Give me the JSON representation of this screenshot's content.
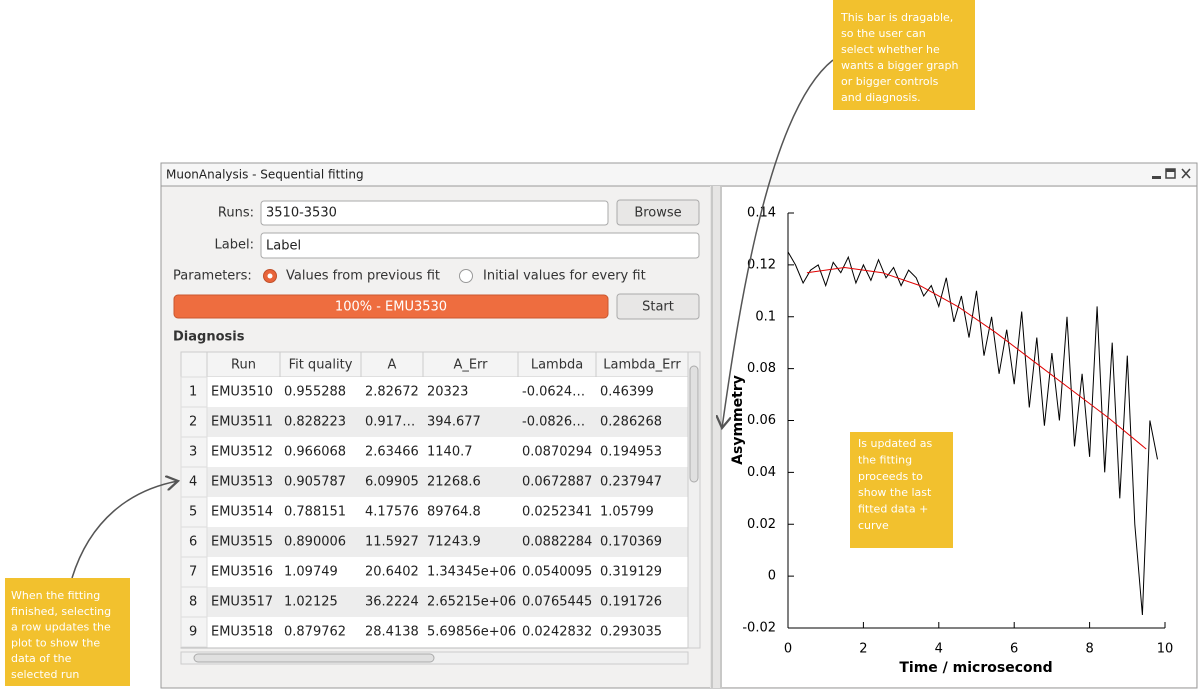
{
  "window": {
    "title": "MuonAnalysis - Sequential fitting"
  },
  "form": {
    "runs_label": "Runs:",
    "runs_value": "3510-3530",
    "browse": "Browse",
    "label_label": "Label:",
    "label_value": "Label",
    "parameters_label": "Parameters:",
    "option_previous": "Values from previous fit",
    "option_initial": "Initial values for every fit",
    "progress_text": "100% - EMU3530",
    "start": "Start",
    "diagnosis": "Diagnosis"
  },
  "table": {
    "columns": [
      "Run",
      "Fit quality",
      "A",
      "A_Err",
      "Lambda",
      "Lambda_Err"
    ],
    "rows": [
      [
        "1",
        "EMU3510",
        "0.955288",
        "2.82672",
        "20323",
        "-0.0624…",
        "0.46399"
      ],
      [
        "2",
        "EMU3511",
        "0.828223",
        "0.917…",
        "394.677",
        "-0.0826…",
        "0.286268"
      ],
      [
        "3",
        "EMU3512",
        "0.966068",
        "2.63466",
        "1140.7",
        "0.0870294",
        "0.194953"
      ],
      [
        "4",
        "EMU3513",
        "0.905787",
        "6.09905",
        "21268.6",
        "0.0672887",
        "0.237947"
      ],
      [
        "5",
        "EMU3514",
        "0.788151",
        "4.17576",
        "89764.8",
        "0.0252341",
        "1.05799"
      ],
      [
        "6",
        "EMU3515",
        "0.890006",
        "11.5927",
        "71243.9",
        "0.0882284",
        "0.170369"
      ],
      [
        "7",
        "EMU3516",
        "1.09749",
        "20.6402",
        "1.34345e+06",
        "0.0540095",
        "0.319129"
      ],
      [
        "8",
        "EMU3517",
        "1.02125",
        "36.2224",
        "2.65215e+06",
        "0.0765445",
        "0.191726"
      ],
      [
        "9",
        "EMU3518",
        "0.879762",
        "28.4138",
        "5.69856e+06",
        "0.0242832",
        "0.293035"
      ]
    ]
  },
  "chart_data": {
    "type": "line",
    "y_label": "Asymmetry",
    "x_label": "Time / microsecond",
    "xlim": [
      0,
      10
    ],
    "ylim": [
      -0.02,
      0.14
    ],
    "xticks": [
      0,
      2,
      4,
      6,
      8,
      10
    ],
    "yticks": [
      -0.02,
      0,
      0.02,
      0.04,
      0.06,
      0.08,
      0.1,
      0.12,
      0.14
    ],
    "series": [
      {
        "color": "#000000",
        "x": [
          0,
          0.2,
          0.4,
          0.6,
          0.8,
          1.0,
          1.2,
          1.4,
          1.6,
          1.8,
          2.0,
          2.2,
          2.4,
          2.6,
          2.8,
          3.0,
          3.2,
          3.4,
          3.6,
          3.8,
          4.0,
          4.2,
          4.4,
          4.6,
          4.8,
          5.0,
          5.2,
          5.4,
          5.6,
          5.8,
          6.0,
          6.2,
          6.4,
          6.6,
          6.8,
          7.0,
          7.2,
          7.4,
          7.6,
          7.8,
          8.0,
          8.2,
          8.4,
          8.6,
          8.8,
          9.0,
          9.2,
          9.4,
          9.6,
          9.8
        ],
        "values": [
          0.125,
          0.12,
          0.113,
          0.118,
          0.12,
          0.112,
          0.121,
          0.117,
          0.123,
          0.113,
          0.12,
          0.114,
          0.122,
          0.115,
          0.119,
          0.112,
          0.118,
          0.115,
          0.108,
          0.112,
          0.104,
          0.115,
          0.098,
          0.108,
          0.092,
          0.11,
          0.085,
          0.1,
          0.078,
          0.095,
          0.074,
          0.102,
          0.065,
          0.092,
          0.058,
          0.086,
          0.06,
          0.1,
          0.05,
          0.078,
          0.046,
          0.104,
          0.04,
          0.09,
          0.03,
          0.085,
          0.02,
          -0.015,
          0.06,
          0.045
        ]
      },
      {
        "color": "#e00000",
        "x": [
          0.5,
          1.5,
          2.5,
          3.5,
          4.5,
          5.5,
          6.5,
          7.5,
          8.5,
          9.5
        ],
        "values": [
          0.117,
          0.119,
          0.117,
          0.112,
          0.104,
          0.094,
          0.083,
          0.072,
          0.061,
          0.049
        ]
      }
    ]
  },
  "annotations": [
    {
      "lines": [
        "This bar is dragable,",
        "so the user can",
        "select whether he",
        "wants a bigger graph",
        "or bigger controls",
        "and diagnosis."
      ]
    },
    {
      "lines": [
        "Is updated as",
        "the fitting",
        "proceeds to",
        "show the last",
        "fitted data +",
        "curve"
      ]
    },
    {
      "lines": [
        "When the fitting",
        "finished, selecting",
        "a row updates the",
        "plot to show the",
        "data of the",
        "selected run"
      ]
    }
  ]
}
